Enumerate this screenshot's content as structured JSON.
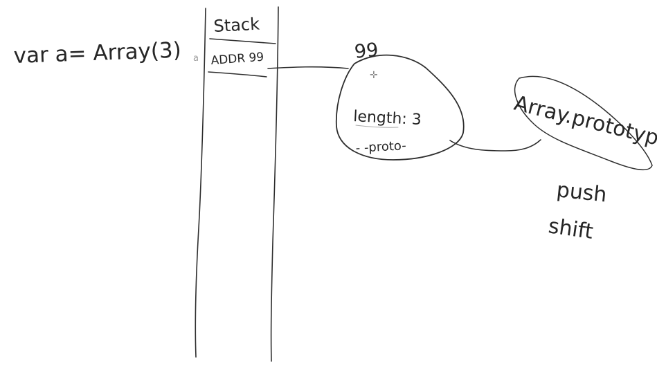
{
  "whiteboard": {
    "ink_color": "#2e2e2e",
    "background_color": "#ffffff",
    "code_statement": "var a= Array(3)",
    "variable_label": "a",
    "stack": {
      "title": "Stack",
      "cell_value": "ADDR 99"
    },
    "heap_object": {
      "address": "99",
      "property_length": "length: 3",
      "property_proto": "- -proto-"
    },
    "prototype_object": {
      "name": "Array.prototype",
      "methods": [
        "push",
        "shift"
      ]
    }
  }
}
